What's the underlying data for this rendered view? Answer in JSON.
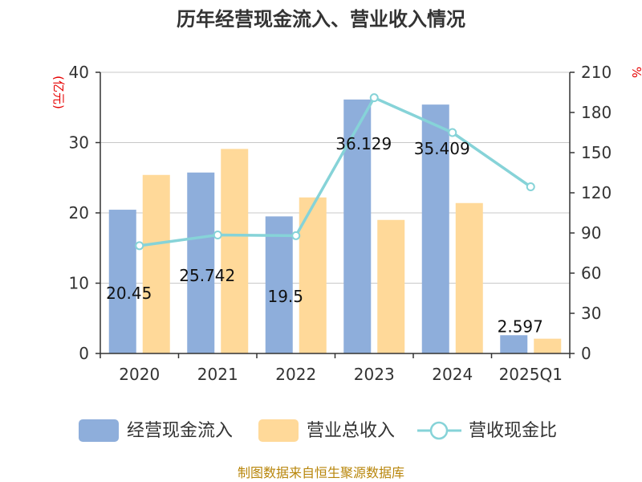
{
  "chart_data": {
    "type": "bar",
    "title": "历年经营现金流入、营业收入情况",
    "categories": [
      "2020",
      "2021",
      "2022",
      "2023",
      "2024",
      "2025Q1"
    ],
    "series": [
      {
        "name": "经营现金流入",
        "kind": "bar",
        "axis": "left",
        "color": "#8eaedb",
        "values": [
          20.45,
          25.742,
          19.5,
          36.129,
          35.409,
          2.597
        ]
      },
      {
        "name": "营业总收入",
        "kind": "bar",
        "axis": "left",
        "color": "#ffd999",
        "values": [
          25.4,
          29.1,
          22.2,
          19.0,
          21.4,
          2.1
        ]
      },
      {
        "name": "营收现金比",
        "kind": "line",
        "axis": "right",
        "color": "#86d3d8",
        "values": [
          80.5,
          88.5,
          88.0,
          191.0,
          165.0,
          124.5
        ]
      }
    ],
    "data_labels": [
      "20.45",
      "25.742",
      "19.5",
      "36.129",
      "35.409",
      "2.597"
    ],
    "y_left": {
      "label": "(亿元)",
      "ylim": [
        0,
        40
      ],
      "ticks": [
        "0",
        "10",
        "20",
        "30",
        "40"
      ]
    },
    "y_right": {
      "label": "%",
      "ylim": [
        0,
        210
      ],
      "ticks": [
        "0",
        "30",
        "60",
        "90",
        "120",
        "150",
        "180",
        "210"
      ]
    },
    "grid": true,
    "legend_position": "bottom"
  },
  "source": "制图数据来自恒生聚源数据库"
}
